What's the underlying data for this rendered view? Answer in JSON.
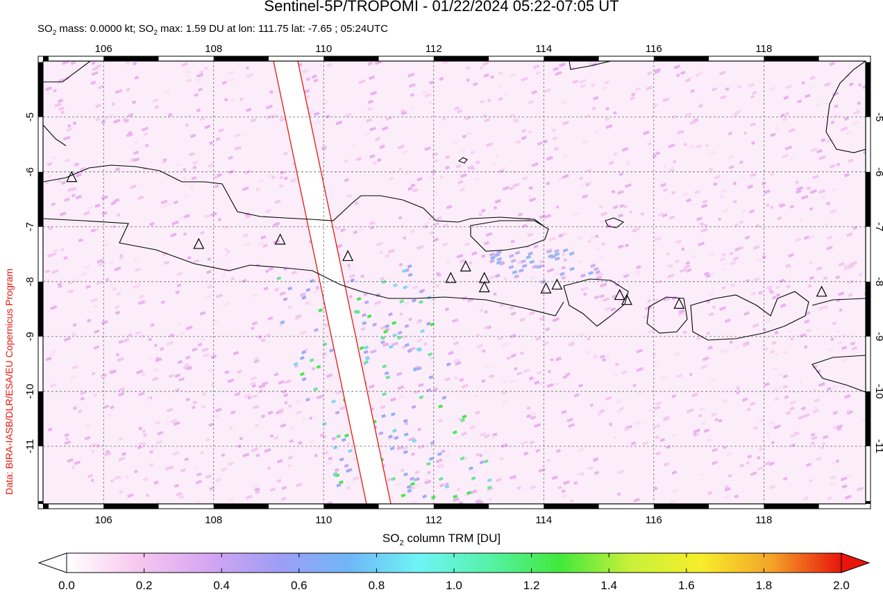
{
  "title": "Sentinel-5P/TROPOMI - 01/22/2024 05:22-07:05 UT",
  "subtitle": {
    "prefix": "SO",
    "sub1": "2",
    "mass_text": " mass: 0.0000 kt; SO",
    "sub2": "2",
    "max_text": " max: 1.59 DU at lon: 111.75 lat: -7.65 ; 05:24UTC"
  },
  "credit": "Data: BIRA-IASB/DLR/ESA/EU Copernicus Program",
  "map": {
    "lon_range": [
      104.9,
      119.85
    ],
    "lat_range": [
      -12.05,
      -3.98
    ],
    "lon_ticks": [
      "106",
      "108",
      "110",
      "112",
      "114",
      "116",
      "118"
    ],
    "lat_ticks": [
      "-5",
      "-6",
      "-7",
      "-8",
      "-9",
      "-10",
      "-11"
    ],
    "grid": "dashed",
    "coastline_color": "#000000",
    "swath_edge_color": "#e8150c",
    "field_color": "#f3c6ef"
  },
  "colorbar": {
    "label_prefix": "SO",
    "label_sub": "2",
    "label_suffix": " column TRM [DU]",
    "ticks": [
      "0.0",
      "0.2",
      "0.4",
      "0.6",
      "0.8",
      "1.0",
      "1.2",
      "1.4",
      "1.6",
      "1.8",
      "2.0"
    ],
    "range": [
      0,
      2
    ],
    "colors": [
      "#ffffff",
      "#f7c8ef",
      "#d6a6f2",
      "#9f9df5",
      "#6fb6f7",
      "#6ff4f6",
      "#56f2a8",
      "#42e83c",
      "#c8f03a",
      "#f6ee2a",
      "#f4a428",
      "#e8150c"
    ]
  },
  "volcanoes": [
    {
      "name": "",
      "lon": 105.42,
      "lat": -6.1
    },
    {
      "name": "",
      "lon": 107.73,
      "lat": -7.32
    },
    {
      "name": "",
      "lon": 109.21,
      "lat": -7.24
    },
    {
      "name": "",
      "lon": 110.44,
      "lat": -7.54
    },
    {
      "name": "",
      "lon": 112.31,
      "lat": -7.94
    },
    {
      "name": "",
      "lon": 112.58,
      "lat": -7.73
    },
    {
      "name": "",
      "lon": 112.92,
      "lat": -7.94
    },
    {
      "name": "",
      "lon": 112.92,
      "lat": -8.11
    },
    {
      "name": "",
      "lon": 114.04,
      "lat": -8.13
    },
    {
      "name": "",
      "lon": 114.24,
      "lat": -8.06
    },
    {
      "name": "",
      "lon": 115.38,
      "lat": -8.25
    },
    {
      "name": "",
      "lon": 115.51,
      "lat": -8.34
    },
    {
      "name": "",
      "lon": 116.46,
      "lat": -8.41
    },
    {
      "name": "",
      "lon": 119.05,
      "lat": -8.19
    }
  ]
}
